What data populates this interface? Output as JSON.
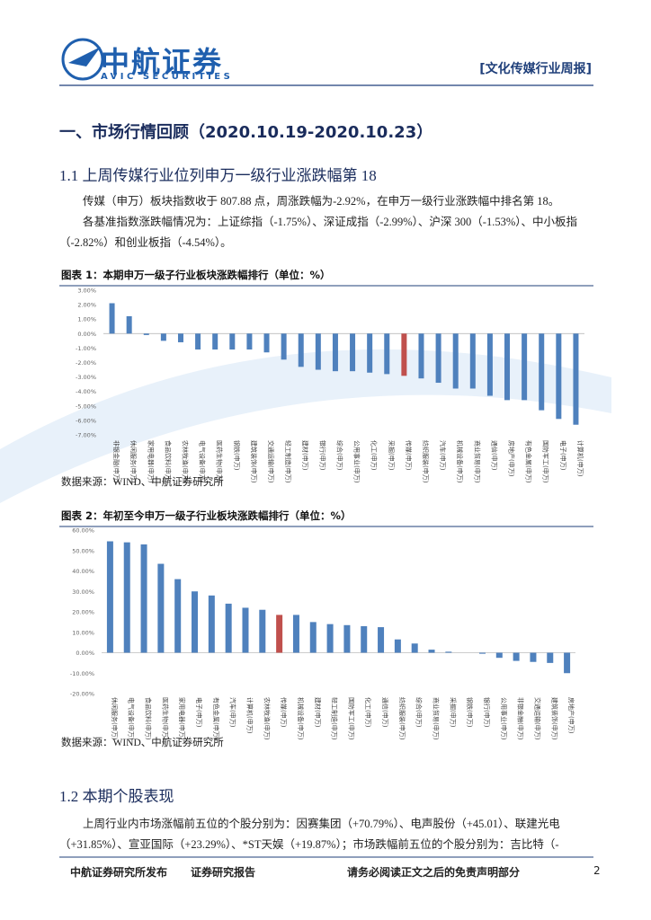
{
  "header": {
    "logo": "中航证券",
    "logo_en": "AVIC SECURITIES",
    "report_tag": "[文化传媒行业周报]"
  },
  "section": {
    "title": "一、市场行情回顾（2020.10.19-2020.10.23）"
  },
  "subsection_1": {
    "title": "1.1 上周传媒行业位列申万一级行业涨跌幅第 18",
    "paragraphs": [
      "传媒（申万）板块指数收于 807.88 点，周涨跌幅为-2.92%，在申万一级行业涨跌幅中排名第 18。",
      "各基准指数涨跌幅情况为：上证综指（-1.75%）、深证成指（-2.99%）、沪深 300（-1.53%）、中小板指（-2.82%）和创业板指（-4.54%）。"
    ]
  },
  "chart_data": [
    {
      "type": "bar",
      "title": "图表 1：本期申万一级子行业板块涨跌幅排行（单位：%）",
      "source": "数据来源：WIND、中航证券研究所",
      "categories": [
        "非银金融(申万)",
        "休闲服务(申万)",
        "家用电器(申万)",
        "食品饮料(申万)",
        "农林牧渔(申万)",
        "电气设备(申万)",
        "医药生物(申万)",
        "钢铁(申万)",
        "建筑装饰(申万)",
        "交通运输(申万)",
        "轻工制造(申万)",
        "建材(申万)",
        "银行(申万)",
        "综合(申万)",
        "公用事业(申万)",
        "化工(申万)",
        "采掘(申万)",
        "传媒(申万)",
        "纺织服装(申万)",
        "汽车(申万)",
        "机械设备(申万)",
        "商业贸易(申万)",
        "通信(申万)",
        "房地产(申万)",
        "有色金属(申万)",
        "国防军工(申万)",
        "电子(申万)",
        "计算机(申万)"
      ],
      "values": [
        2.1,
        1.2,
        -0.1,
        -0.5,
        -0.6,
        -1.1,
        -1.1,
        -1.1,
        -1.1,
        -1.3,
        -1.8,
        -2.3,
        -2.5,
        -2.6,
        -2.6,
        -2.7,
        -2.8,
        -2.92,
        -3.1,
        -3.4,
        -3.8,
        -3.8,
        -4.3,
        -4.6,
        -4.6,
        -5.3,
        -5.9,
        -6.3
      ],
      "colors": [
        "#4f81bd",
        "#4f81bd",
        "#4f81bd",
        "#4f81bd",
        "#4f81bd",
        "#4f81bd",
        "#4f81bd",
        "#4f81bd",
        "#4f81bd",
        "#4f81bd",
        "#4f81bd",
        "#4f81bd",
        "#4f81bd",
        "#4f81bd",
        "#4f81bd",
        "#4f81bd",
        "#4f81bd",
        "#c0504d",
        "#4f81bd",
        "#4f81bd",
        "#4f81bd",
        "#4f81bd",
        "#4f81bd",
        "#4f81bd",
        "#4f81bd",
        "#4f81bd",
        "#4f81bd",
        "#4f81bd"
      ],
      "ylim": [
        -7,
        3
      ],
      "yticks": [
        {
          "value": 3,
          "label": "3.00%"
        },
        {
          "value": 2,
          "label": "2.00%"
        },
        {
          "value": 1,
          "label": "1.00%"
        },
        {
          "value": 0,
          "label": "0.00%"
        },
        {
          "value": -1,
          "label": "-1.00%"
        },
        {
          "value": -2,
          "label": "-2.00%"
        },
        {
          "value": -3,
          "label": "-3.00%"
        },
        {
          "value": -4,
          "label": "-4.00%"
        },
        {
          "value": -5,
          "label": "-5.00%"
        },
        {
          "value": -6,
          "label": "-6.00%"
        },
        {
          "value": -7,
          "label": "-7.00%"
        }
      ],
      "grid": false
    },
    {
      "type": "bar",
      "title": "图表 2：年初至今申万一级子行业板块涨跌幅排行（单位：%）",
      "source": "数据来源：WIND、中航证券研究所",
      "categories": [
        "休闲服务(申万)",
        "电气设备(申万)",
        "食品饮料(申万)",
        "医药生物(申万)",
        "家用电器(申万)",
        "电子(申万)",
        "有色金属(申万)",
        "汽车(申万)",
        "计算机(申万)",
        "农林牧渔(申万)",
        "传媒(申万)",
        "机械设备(申万)",
        "建材(申万)",
        "轻工制造(申万)",
        "国防军工(申万)",
        "化工(申万)",
        "通信(申万)",
        "纺织服装(申万)",
        "综合(申万)",
        "商业贸易(申万)",
        "采掘(申万)",
        "钢铁(申万)",
        "银行(申万)",
        "公用事业(申万)",
        "非银金融(申万)",
        "交通运输(申万)",
        "建筑装饰(申万)",
        "房地产(申万)"
      ],
      "values": [
        54.5,
        54,
        53,
        43.5,
        36,
        30,
        28,
        24,
        22,
        21,
        18.5,
        18.5,
        15,
        14,
        13.5,
        13,
        12.5,
        6.5,
        4.5,
        1.5,
        0.5,
        0,
        -0.5,
        -2.5,
        -4,
        -4.5,
        -5,
        -10
      ],
      "colors": [
        "#4f81bd",
        "#4f81bd",
        "#4f81bd",
        "#4f81bd",
        "#4f81bd",
        "#4f81bd",
        "#4f81bd",
        "#4f81bd",
        "#4f81bd",
        "#4f81bd",
        "#c0504d",
        "#4f81bd",
        "#4f81bd",
        "#4f81bd",
        "#4f81bd",
        "#4f81bd",
        "#4f81bd",
        "#4f81bd",
        "#4f81bd",
        "#4f81bd",
        "#4f81bd",
        "#4f81bd",
        "#4f81bd",
        "#4f81bd",
        "#4f81bd",
        "#4f81bd",
        "#4f81bd",
        "#4f81bd"
      ],
      "ylim": [
        -20,
        60
      ],
      "yticks": [
        {
          "value": 60,
          "label": "60.00%"
        },
        {
          "value": 50,
          "label": "50.00%"
        },
        {
          "value": 40,
          "label": "40.00%"
        },
        {
          "value": 30,
          "label": "30.00%"
        },
        {
          "value": 20,
          "label": "20.00%"
        },
        {
          "value": 10,
          "label": "10.00%"
        },
        {
          "value": 0,
          "label": "0.00%"
        },
        {
          "value": -10,
          "label": "-10.00%"
        },
        {
          "value": -20,
          "label": "-20.00%"
        }
      ],
      "grid": false
    }
  ],
  "subsection_2": {
    "title": "1.2 本期个股表现",
    "paragraphs": [
      "上周行业内市场涨幅前五位的个股分别为：因赛集团（+70.79%）、电声股份（+45.01）、联建光电（+31.85%）、宣亚国际（+23.29%）、*ST天娱（+19.87%）；市场跌幅前五位的个股分别为：吉比特（-"
    ]
  },
  "footer": {
    "publisher": "中航证券研究所发布",
    "report_type": "证券研究报告",
    "disclaimer": "请务必阅读正文之后的免责声明部分",
    "page": "2"
  }
}
